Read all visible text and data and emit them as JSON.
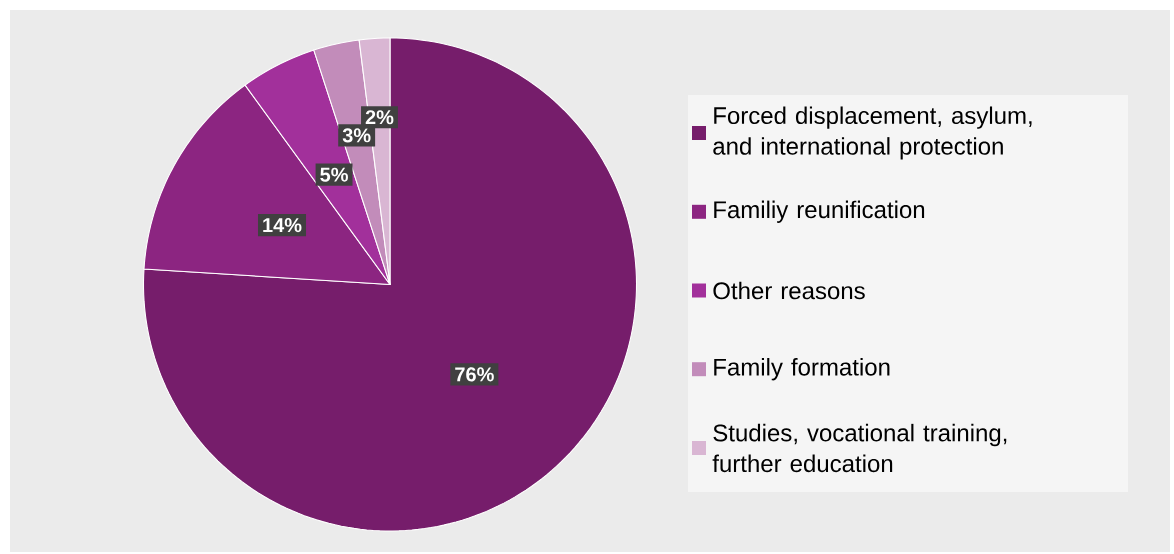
{
  "chart_data": {
    "type": "pie",
    "categories": [
      "Forced displacement, asylum, and international protection",
      "Familiy reunification",
      "Other reasons",
      "Family formation",
      "Studies, vocational training, further education"
    ],
    "values": [
      76,
      14,
      5,
      3,
      2
    ],
    "colors": [
      "#761d6b",
      "#8c2581",
      "#a2309b",
      "#c28cba",
      "#d9b6d3"
    ],
    "value_labels": [
      "76%",
      "14%",
      "5%",
      "3%",
      "2%"
    ],
    "legend": "right"
  }
}
